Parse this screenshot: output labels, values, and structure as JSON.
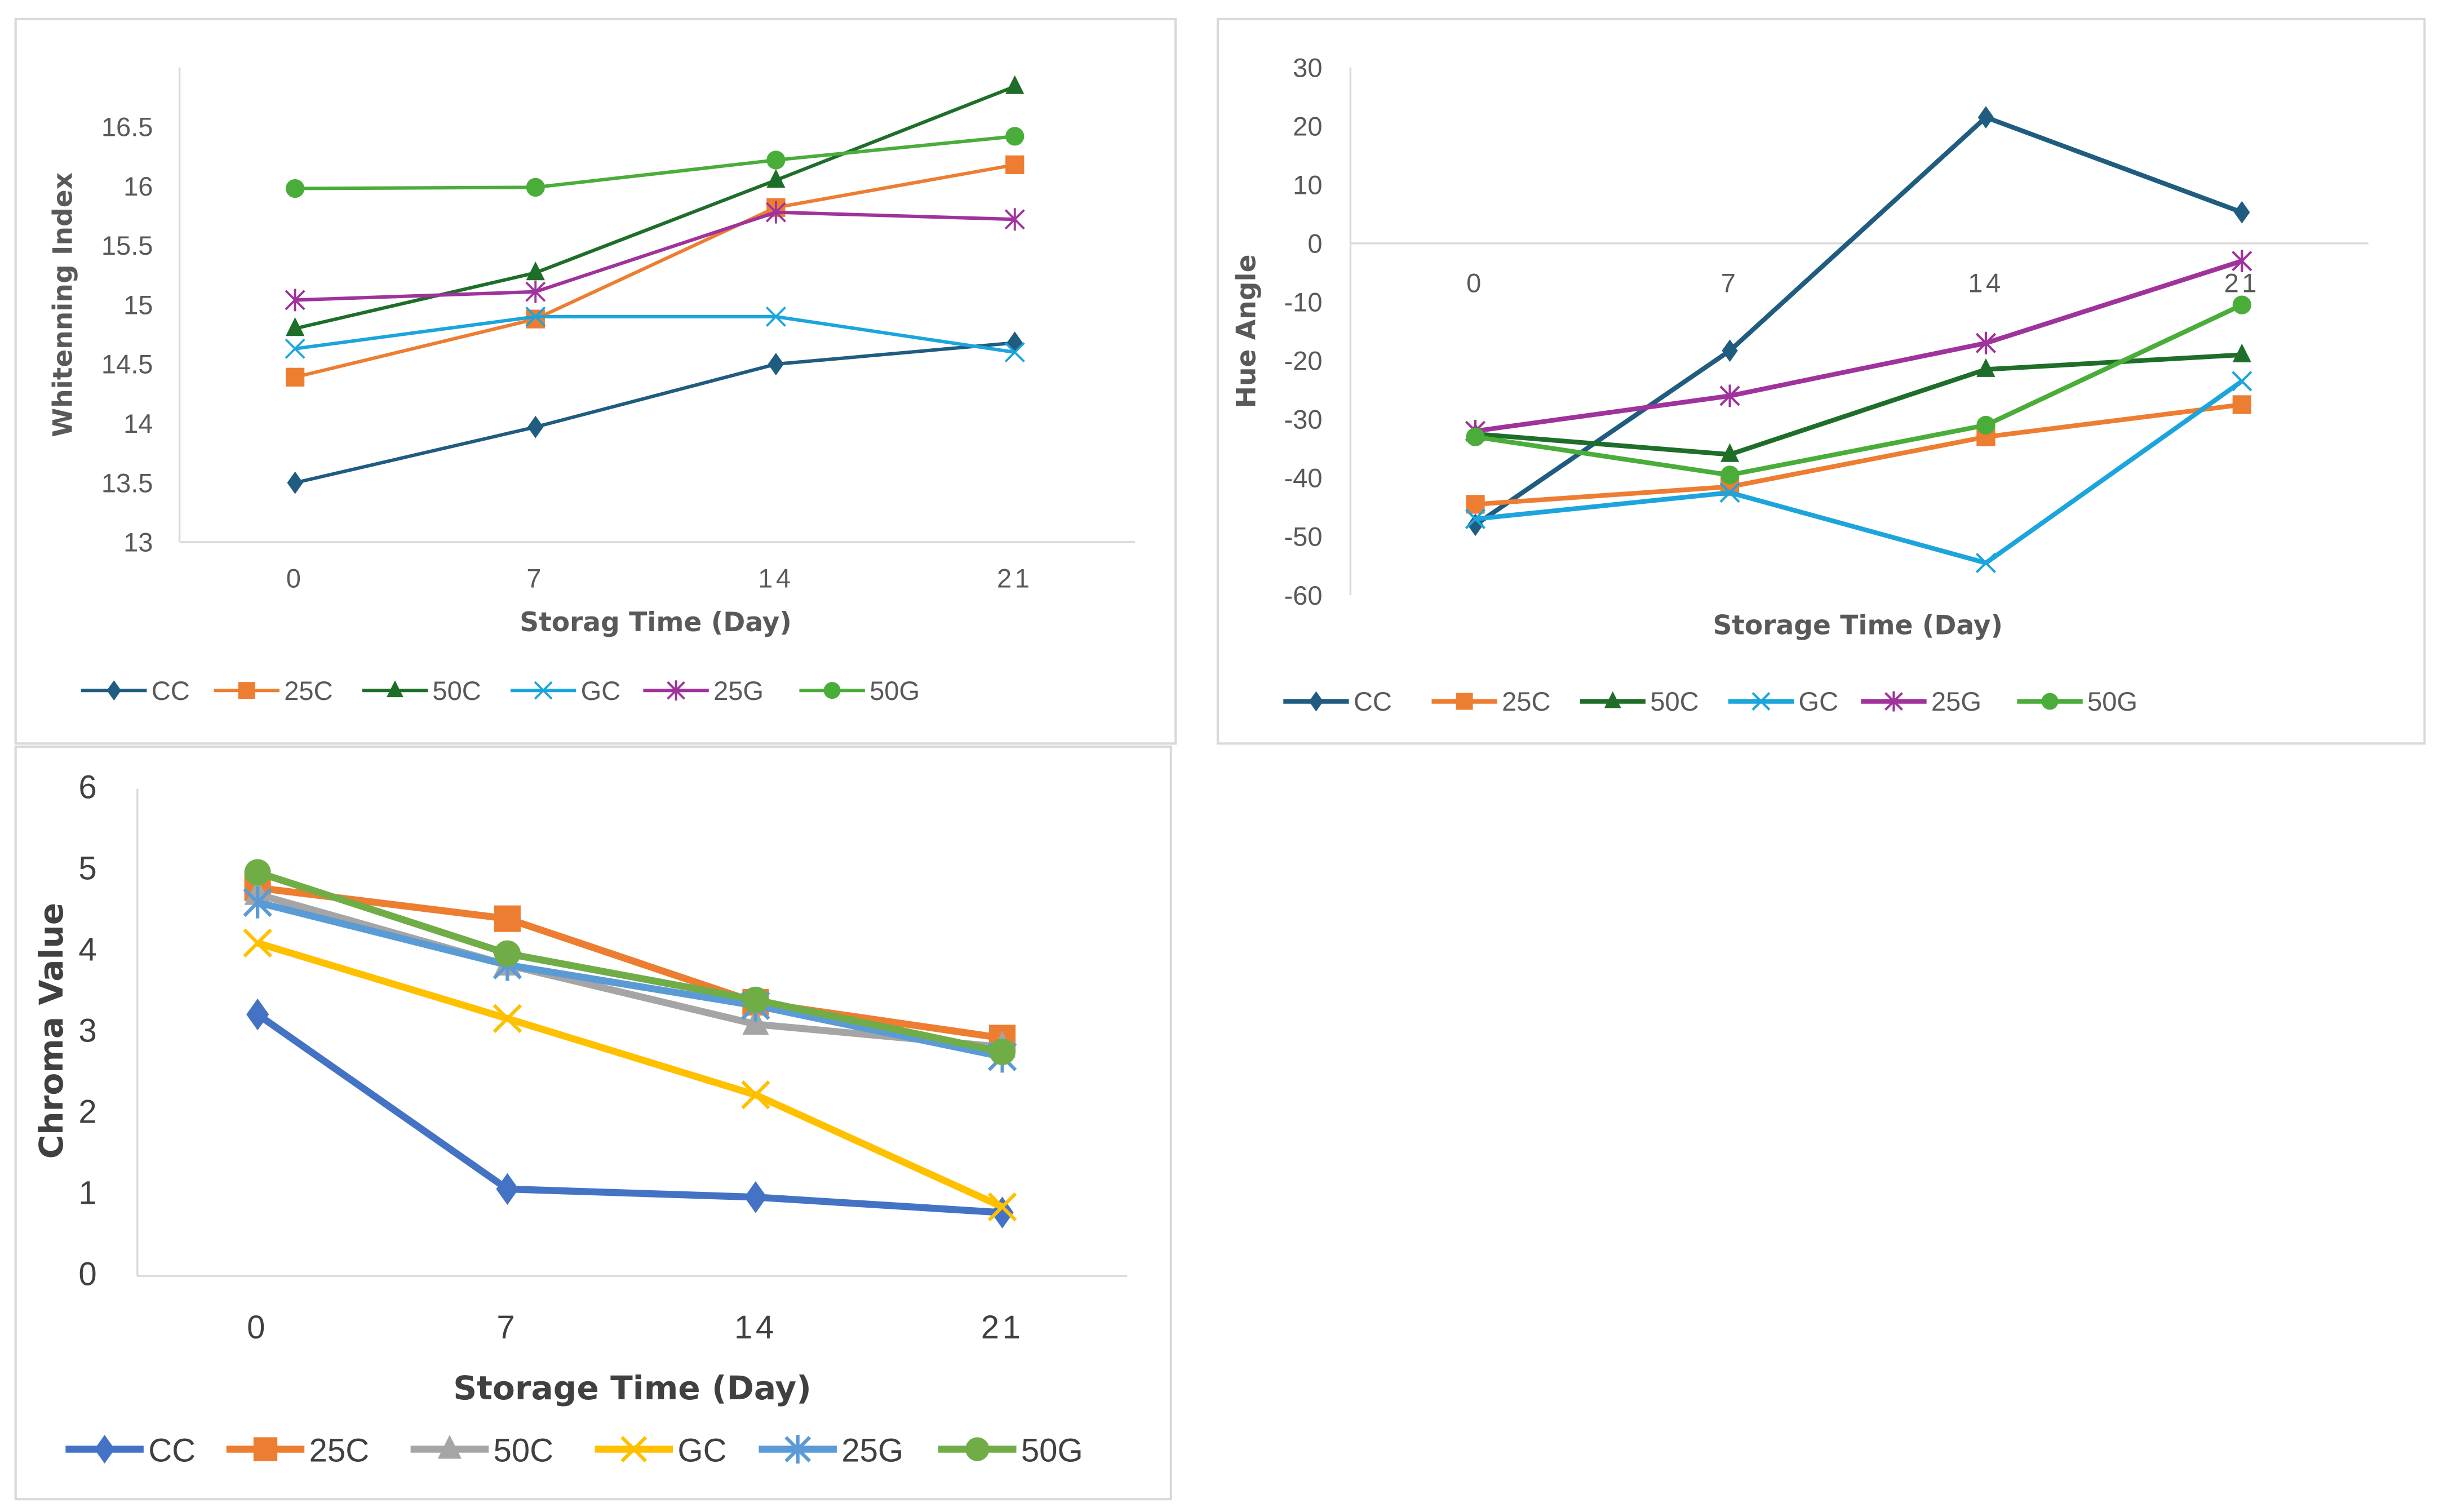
{
  "chart_data": [
    {
      "type": "line",
      "title": "",
      "xlabel": "Storag Time (Day)",
      "ylabel": "Whitenning Index",
      "categories": [
        "0",
        "7",
        "14",
        "21"
      ],
      "yticks": [
        "13",
        "13.5",
        "14",
        "14.5",
        "15",
        "15.5",
        "16",
        "16.5"
      ],
      "ylim": [
        13,
        17
      ],
      "grid": false,
      "legend": "bottom",
      "series": [
        {
          "name": "CC",
          "color": "#1f5c80",
          "marker": "diamond",
          "values": [
            13.5,
            13.97,
            14.5,
            14.68
          ]
        },
        {
          "name": "25C",
          "color": "#ed7d31",
          "marker": "square",
          "values": [
            14.39,
            14.88,
            15.82,
            16.18
          ]
        },
        {
          "name": "50C",
          "color": "#1e6e2a",
          "marker": "triangle",
          "values": [
            14.8,
            15.27,
            16.05,
            16.84
          ]
        },
        {
          "name": "GC",
          "color": "#1ca5dc",
          "marker": "x",
          "values": [
            14.63,
            14.9,
            14.9,
            14.6
          ]
        },
        {
          "name": "25G",
          "color": "#a0329c",
          "marker": "star",
          "values": [
            15.04,
            15.11,
            15.78,
            15.72
          ]
        },
        {
          "name": "50G",
          "color": "#4aad3a",
          "marker": "circle",
          "values": [
            15.98,
            15.99,
            16.22,
            16.42
          ]
        }
      ]
    },
    {
      "type": "line",
      "title": "",
      "xlabel": "Storage Time (Day)",
      "ylabel": "Hue Angle",
      "categories": [
        "0",
        "7",
        "14",
        "21"
      ],
      "yticks": [
        "-60",
        "-50",
        "-40",
        "-30",
        "-20",
        "-10",
        "0",
        "10",
        "20",
        "30"
      ],
      "ylim": [
        -60,
        30
      ],
      "grid": false,
      "legend": "bottom",
      "series": [
        {
          "name": "CC",
          "color": "#1f5c80",
          "marker": "diamond",
          "values": [
            -48,
            -18.3,
            21.5,
            5.3
          ]
        },
        {
          "name": "25C",
          "color": "#ed7d31",
          "marker": "square",
          "values": [
            -44.5,
            -41.5,
            -33,
            -27.5
          ]
        },
        {
          "name": "50C",
          "color": "#1e6e2a",
          "marker": "triangle",
          "values": [
            -32.5,
            -36,
            -21.5,
            -19
          ]
        },
        {
          "name": "GC",
          "color": "#1ca5dc",
          "marker": "x",
          "values": [
            -47,
            -42.5,
            -54.5,
            -23.5
          ]
        },
        {
          "name": "25G",
          "color": "#a0329c",
          "marker": "star",
          "values": [
            -32,
            -26,
            -17,
            -3
          ]
        },
        {
          "name": "50G",
          "color": "#4aad3a",
          "marker": "circle",
          "values": [
            -33,
            -39.5,
            -31,
            -10.5
          ]
        }
      ]
    },
    {
      "type": "line",
      "title": "",
      "xlabel": "Storage Time (Day)",
      "ylabel": "Chroma Value",
      "categories": [
        "0",
        "7",
        "14",
        "21"
      ],
      "yticks": [
        "0",
        "1",
        "2",
        "3",
        "4",
        "5",
        "6"
      ],
      "ylim": [
        0,
        6
      ],
      "grid": false,
      "legend": "bottom",
      "series": [
        {
          "name": "CC",
          "color": "#4472c4",
          "marker": "diamond",
          "values": [
            3.22,
            1.07,
            0.97,
            0.78
          ]
        },
        {
          "name": "25C",
          "color": "#ed7d31",
          "marker": "square",
          "values": [
            4.78,
            4.4,
            3.37,
            2.93
          ]
        },
        {
          "name": "50C",
          "color": "#a5a5a5",
          "marker": "triangle",
          "values": [
            4.7,
            3.83,
            3.1,
            2.82
          ]
        },
        {
          "name": "GC",
          "color": "#ffc000",
          "marker": "x",
          "values": [
            4.1,
            3.17,
            2.23,
            0.85
          ]
        },
        {
          "name": "25G",
          "color": "#5b9bd5",
          "marker": "star",
          "values": [
            4.6,
            3.83,
            3.33,
            2.7
          ]
        },
        {
          "name": "50G",
          "color": "#70ad47",
          "marker": "circle",
          "values": [
            4.97,
            3.97,
            3.4,
            2.76
          ]
        }
      ]
    }
  ]
}
